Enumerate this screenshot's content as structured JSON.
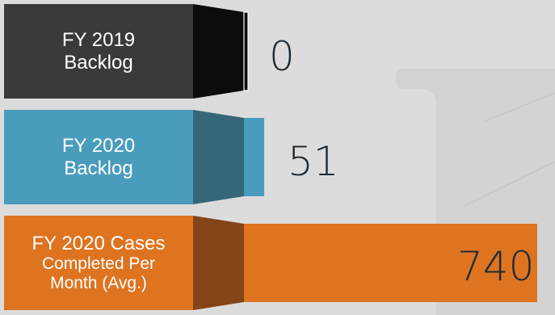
{
  "chart_data": {
    "type": "bar",
    "orientation": "horizontal",
    "categories": [
      "FY 2019 Backlog",
      "FY 2020 Backlog",
      "FY 2020 Cases Completed Per Month (Avg.)"
    ],
    "values": [
      0,
      51,
      740
    ],
    "data_labels": [
      "0",
      "51",
      "740"
    ],
    "colors": [
      "#3a3a3a",
      "#4a9cbd",
      "#de7420"
    ],
    "side_colors": [
      "#0c0c0c",
      "#356778",
      "#854418"
    ],
    "title": "",
    "xlabel": "",
    "ylabel": "",
    "grid": false,
    "legend": "none"
  },
  "labels": [
    {
      "line1": "FY 2019",
      "line2": "Backlog"
    },
    {
      "line1": "FY 2020",
      "line2": "Backlog"
    },
    {
      "line1": "FY 2020 Cases",
      "line2": "Completed Per",
      "line3": "Month (Avg.)"
    }
  ]
}
